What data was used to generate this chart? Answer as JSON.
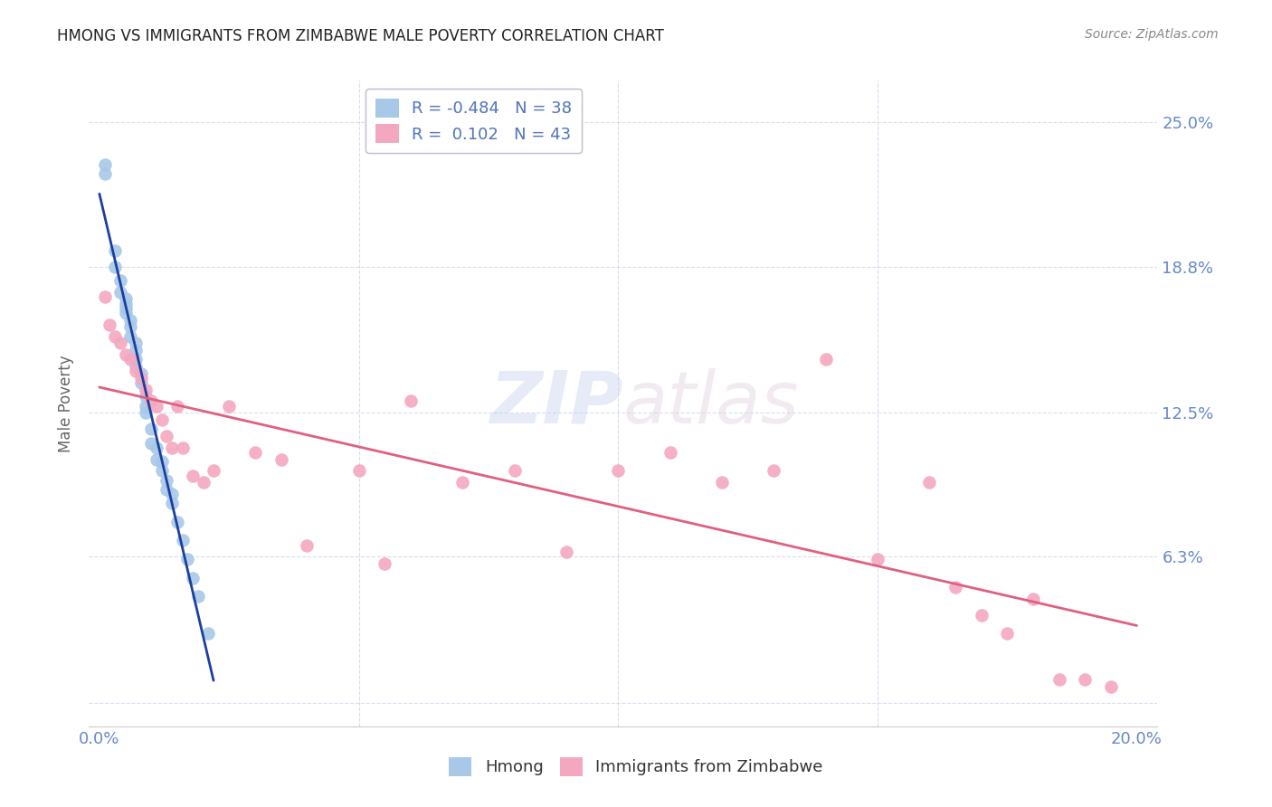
{
  "title": "HMONG VS IMMIGRANTS FROM ZIMBABWE MALE POVERTY CORRELATION CHART",
  "source": "Source: ZipAtlas.com",
  "ylabel_label": "Male Poverty",
  "ylabel_ticks": [
    0.0,
    0.063,
    0.125,
    0.188,
    0.25
  ],
  "ylabel_tick_labels": [
    "",
    "6.3%",
    "12.5%",
    "18.8%",
    "25.0%"
  ],
  "xlim": [
    -0.002,
    0.204
  ],
  "ylim": [
    -0.01,
    0.268
  ],
  "hmong_color": "#a8c8e8",
  "zimbabwe_color": "#f4a8c0",
  "hmong_line_color": "#1a3fa0",
  "zimbabwe_line_color": "#e06080",
  "watermark_zip": "ZIP",
  "watermark_atlas": "atlas",
  "background_color": "#ffffff",
  "grid_color": "#d8ddf0",
  "tick_label_color": "#6688cc",
  "legend_label_color": "#5577bb",
  "hmong_x": [
    0.001,
    0.001,
    0.003,
    0.003,
    0.004,
    0.004,
    0.005,
    0.005,
    0.005,
    0.005,
    0.006,
    0.006,
    0.006,
    0.007,
    0.007,
    0.007,
    0.007,
    0.008,
    0.008,
    0.009,
    0.009,
    0.009,
    0.01,
    0.01,
    0.011,
    0.011,
    0.012,
    0.012,
    0.013,
    0.013,
    0.014,
    0.014,
    0.015,
    0.016,
    0.017,
    0.018,
    0.019,
    0.021
  ],
  "hmong_y": [
    0.228,
    0.232,
    0.188,
    0.195,
    0.177,
    0.182,
    0.17,
    0.174,
    0.168,
    0.172,
    0.158,
    0.162,
    0.165,
    0.145,
    0.148,
    0.152,
    0.155,
    0.138,
    0.142,
    0.125,
    0.128,
    0.132,
    0.112,
    0.118,
    0.105,
    0.11,
    0.1,
    0.104,
    0.092,
    0.096,
    0.086,
    0.09,
    0.078,
    0.07,
    0.062,
    0.054,
    0.046,
    0.03
  ],
  "zimbabwe_x": [
    0.001,
    0.002,
    0.003,
    0.004,
    0.005,
    0.006,
    0.007,
    0.008,
    0.009,
    0.01,
    0.011,
    0.012,
    0.013,
    0.014,
    0.015,
    0.016,
    0.018,
    0.02,
    0.022,
    0.025,
    0.03,
    0.035,
    0.04,
    0.05,
    0.055,
    0.06,
    0.07,
    0.08,
    0.09,
    0.1,
    0.11,
    0.12,
    0.13,
    0.14,
    0.15,
    0.16,
    0.165,
    0.17,
    0.175,
    0.18,
    0.185,
    0.19,
    0.195
  ],
  "zimbabwe_y": [
    0.175,
    0.163,
    0.158,
    0.155,
    0.15,
    0.148,
    0.143,
    0.14,
    0.135,
    0.13,
    0.128,
    0.122,
    0.115,
    0.11,
    0.128,
    0.11,
    0.098,
    0.095,
    0.1,
    0.128,
    0.108,
    0.105,
    0.068,
    0.1,
    0.06,
    0.13,
    0.095,
    0.1,
    0.065,
    0.1,
    0.108,
    0.095,
    0.1,
    0.148,
    0.062,
    0.095,
    0.05,
    0.038,
    0.03,
    0.045,
    0.01,
    0.01,
    0.007
  ]
}
